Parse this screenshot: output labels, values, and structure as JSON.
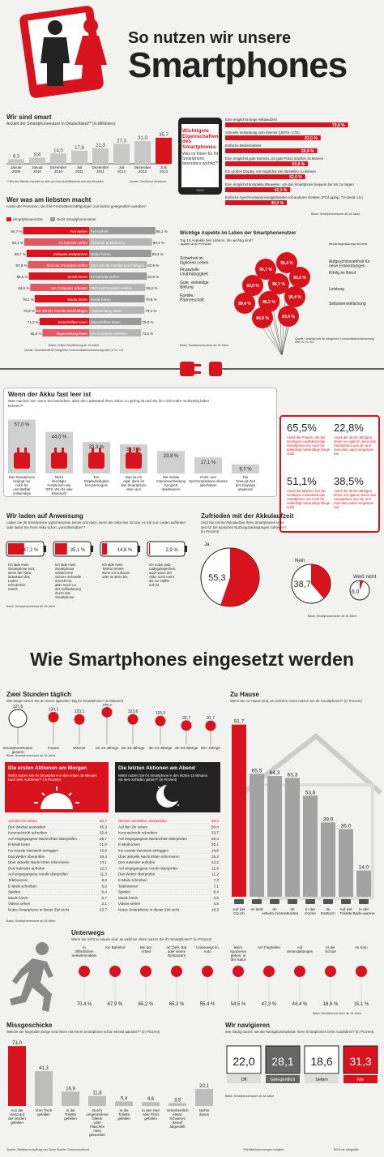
{
  "header": {
    "title_line1": "So nutzen wir unsere",
    "title_line2": "Smartphones"
  },
  "colors": {
    "red": "#d7131e",
    "grey": "#9a9a9a",
    "dark": "#222222",
    "bg": "#f2f2f0"
  },
  "wir_sind_smart": {
    "title": "Wir sind smart",
    "subtitle": "Anzahl der Smartphonenutzer in Deutschland** (in Millionen)",
    "footnote": "** Bei den Werten handelt es sich um Durchschnittswerte aus drei Monaten",
    "source": "Quelle: ComScore Mobilens",
    "chart_data": {
      "type": "bar",
      "categories": [
        "Januar 2009",
        "Januar 2010",
        "Dezember 2010",
        "Juli 2011",
        "Dezember 2011",
        "Juli 2012",
        "Dezember 2012",
        "Juni 2013"
      ],
      "values": [
        6.3,
        8.4,
        14.0,
        17.8,
        21.3,
        27.3,
        31.0,
        35.7
      ],
      "value_labels": [
        "6,3",
        "8,4",
        "14,0",
        "17,8",
        "21,3",
        "27,3",
        "31,0",
        "35,7"
      ]
    }
  },
  "eigenschaften": {
    "title": "Wichtigste Eigenschaften des Smartphones",
    "question": "Was ist Ihnen für Ihr Smartphone besonders wichtig?*",
    "base": "Basis: Smartphonenutzer ab 18 Jahre",
    "chart_data": {
      "type": "bar",
      "categories": [
        "Eine möglichst lange Akkulaufzeit",
        "Schnelle Verbindung zum Internet (UMTS / LTE)",
        "Einfache Bedienbarkeit",
        "Eine möglichst gute Kamera, um gute Fotos machen zu können",
        "Ein großes Display, um möglichst viel darstellen zu können",
        "Eine möglichst kompakte Bauweise, um das Smartphone bequem bei mir zu tragen",
        "Einfache Synchronisationsmöglichkeiten mit anderen Geräten (PC/Laptop, TV-Gerät o.ä.)"
      ],
      "values": [
        79.8,
        62.0,
        59.8,
        53.8,
        52.0,
        42.3,
        40.0
      ],
      "value_labels": [
        "79,8 %",
        "62,0 %",
        "59,8 %",
        "53,8 %",
        "52,0 %",
        "42,3 %",
        "40,0 %"
      ]
    }
  },
  "liebsten": {
    "title": "Wer was am liebsten macht",
    "subtitle": "Anteil der Personen, die ihre Freizeitbeschäftigungen zumindest gelegentlich ausüben*",
    "legend": [
      "Smartphonenutzer",
      "Nicht-Smartphonenutzer"
    ],
    "base": "Basis: Online-Bevölkerung ab 18 Jahre",
    "source": "Quelle: Gesellschaft für integrierte Kommunikationsforschung mbH & Co. KG",
    "chart_data": {
      "type": "bar",
      "left": {
        "name": "Smartphonenutzer",
        "categories": [
          "Fernsehen",
          "Im Internet surfen",
          "Zuhause entspannen",
          "Sich mit Freunden treffen",
          "Musik hören",
          "Am Computer arbeiten",
          "Radio hören",
          "Sich mit der Familie beschäftigen",
          "Zeitschriften lesen",
          "Tageszeitung lesen"
        ],
        "values": [
          94.7,
          93.1,
          89.7,
          87.8,
          86.5,
          84.5,
          78.1,
          76.9,
          71.2,
          66.9
        ],
        "value_labels": [
          "94,7 %",
          "93,1 %",
          "89,7 %",
          "87,8 %",
          "86,5 %",
          "84,5 %",
          "78,1 %",
          "76,9 %",
          "71,2 %",
          "66,9 %"
        ]
      },
      "right": {
        "name": "Nicht-Smartphonenutzer",
        "categories": [
          "Fernsehen",
          "Zuhause entspannen",
          "Radio hören",
          "Sich mit der Familie beschäftigen",
          "Im Internet surfen",
          "Sich mit Freunden treffen",
          "Musik hören",
          "Tageszeitung lesen",
          "Zeitschriften lesen",
          "Am Computer arbeiten"
        ],
        "values": [
          95.1,
          90.4,
          89.3,
          82.9,
          82.8,
          80.6,
          79.8,
          79.3,
          75.0,
          74.5
        ],
        "value_labels": [
          "95,1 %",
          "90,4 %",
          "89,3 %",
          "82,9 %",
          "82,8 %",
          "80,6 %",
          "79,8 %",
          "79,3 %",
          "75,0 %",
          "74,5 %"
        ]
      }
    }
  },
  "aspekte": {
    "title": "Wichtige Aspekte im Leben der Smartphonenutzer",
    "subtitle": "Top 10 Aspekte des Lebens, die wichtig sind*",
    "base": "Basis: Smartphonenutzer ab 18 Jahre",
    "source": "Quelle: Gesellschaft für integrierte Kommunikationsforschung mbH & Co. KG",
    "chart_data": {
      "type": "table",
      "categories": [
        "Spaß und Freude",
        "Sicherheit im täglichen Leben",
        "Finanzielle Unabhängigkeit",
        "Gute, vielseitige Bildung",
        "Familie, Partnerschaft",
        "Arbeitsplatzsicherheit",
        "Aufgeschlossenheit für neue Entwicklungen",
        "Erfolg im Beruf",
        "Leistung",
        "Selbstverwirklichung"
      ],
      "value_labels": [
        "95,7 %",
        "92,9 %",
        "92,4 %",
        "90,4 %",
        "89,4 %",
        "90,4 %",
        "86,7 %",
        "86,2 %",
        "84,9 %",
        "83,4 %"
      ],
      "bubble_labels": [
        "95,7 %",
        "90,4 %",
        "92,9 %",
        "86,7 %",
        "92,4 %",
        "89,4 %",
        "86,2 %",
        "90,4 %",
        "84,9 %",
        "83,4 %"
      ]
    }
  },
  "akku": {
    "title": "Wenn der Akku fast leer ist",
    "subtitle": "Was machen Sie, wenn Sie bemerken, dass der Ladestand Ihres Akkus zu gering ist und Sie ihn nicht mehr rechtzeitig laden können?*",
    "chart_data": {
      "type": "bar",
      "categories": [
        "Das Smartphone bedingt nur noch für unmittelbar notwendige Dinge nutzen",
        "Nicht benötigte Funktionen wie GPS, WLAN oder Bluetooth abschalten",
        "Die Displayhelligkeit herunterregeln",
        "Das ist mir egal, dann ist das Smartphone eben aus",
        "Die mobile Internetverbindung komplett deaktivieren",
        "Push- und Synchronisations-dienste abschalten",
        "Die Timeout-Zeit des Displays anpassen"
      ],
      "values": [
        57.0,
        44.0,
        33.3,
        30.9,
        23.8,
        17.1,
        9.7
      ],
      "value_labels": [
        "57,0 %",
        "44,0 %",
        "33,3 %",
        "30,9 %",
        "23,8 %",
        "17,1 %",
        "9,7 %"
      ]
    },
    "stats": [
      {
        "value": "65,5%",
        "text": "Anteil der Frauen, der bei niedrigem Ladestand das Smartphone nur noch für unbedingt notwendige Dinge nutzt"
      },
      {
        "value": "22,8%",
        "text": "Anteil der 18-24-Jährigen, denen es egal ist, wenn das Smartphone aus ist, weil man das Laden vergessen hat"
      },
      {
        "value": "51,1%",
        "text": "Anteil der Männer, der bei niedrigem Ladestand das Smartphone nur noch für unbedingt notwendige Dinge nutzt"
      },
      {
        "value": "38,5%",
        "text": "Anteil der 45-54-Jährigen, denen es egal ist, wenn das Smartphone aus ist, weil man das Laden vergessen hat"
      }
    ]
  },
  "laden": {
    "title": "Wir laden auf Anweisung",
    "subtitle": "Laden Sie Ihr Smartphone typischerweise immer erst dann, wenn der Akku leer ist bzw. es Sie zum Laden auffordert oder laden Sie Ihren Akku schon „vorsichtshalber“?",
    "base": "Basis: Smartphonenutzer ab 18 Jahre",
    "chart_data": {
      "type": "bar",
      "categories": [
        "Ich lade mein Smartphone erst, wenn der Akku ladestand das Laden erforderlich macht",
        "Ich lade mein Smartphone sobald eine sichere Schwelle erreicht ist, aber noch vor der Aufforderung durch das Smartphone",
        "Ich lade mein Telefon immer wenn ich zuhause oder im Büro bin",
        "Ich nutze jede Ladegelegenheit, auch wenn der Akku noch mehr als zur Hälfte voll ist"
      ],
      "values": [
        47.2,
        35.1,
        14.8,
        2.9
      ],
      "value_labels": [
        "47,2 %",
        "35,1 %",
        "14,8 %",
        "2,9 %"
      ]
    }
  },
  "zufrieden": {
    "title": "Zufrieden mit der Akkulaufzeit",
    "subtitle": "Sind Sie mit der Akkulaufzeit Ihres Smartphones unter den für Sie typischen Nutzungsbedingungen zufrieden? (in Prozent)",
    "base": "Basis: Smartphonenutzer ab 18 Jahre",
    "chart_data": {
      "type": "pie",
      "categories": [
        "Ja",
        "Nein",
        "Weiß nicht"
      ],
      "values": [
        55.3,
        38.7,
        6.0
      ],
      "value_labels": [
        "55,3",
        "38,7",
        "6,0"
      ]
    }
  },
  "section2": {
    "title": "Wie Smartphones eingesetzt werden"
  },
  "zwei_stunden": {
    "title": "Zwei Stunden täglich",
    "subtitle": "Wie lange nutzen Sie an einem typischen Tag Ihr Smartphone? (in Minuten)",
    "base": "Basis: Smartphonenutzer ab 18 Jahre",
    "chart_data": {
      "type": "bar",
      "categories": [
        "Smartphonenutzer gesamt",
        "Frauen",
        "Männer",
        "18–24-Jährige",
        "25–34-Jährige",
        "35–44-Jährige",
        "45–54-Jährige",
        "55+-Jährige"
      ],
      "values": [
        127.6,
        134.1,
        123.1,
        158.2,
        123.6,
        115.3,
        92.7,
        91.7
      ],
      "value_labels": [
        "127,6",
        "134,1",
        "123,1",
        "158,2",
        "123,6",
        "115,3",
        "92,7",
        "91,7"
      ]
    }
  },
  "morgen": {
    "title": "Die ersten Aktionen am Morgen",
    "subtitle": "Wofür nutzen Sie Ihr Smartphone in-den ersten 15 Minuten nach dem Aufstehen?* (in Prozent)",
    "chart_data": {
      "type": "table",
      "categories": [
        "Auf die Uhr sehen",
        "Den Wecker ausstellen",
        "Kurznachricht schreiben",
        "Auf eingegangene Nachrichten überprüfen",
        "E-Mails lesen",
        "Ins soziale Netzwerk einloggen",
        "Das Wetter überprüfen",
        "Über aktuelle Nachrichten informieren",
        "Den Kalender aufrufen",
        "Auf eingegangene Anrufe überprüfen",
        "Telefonieren",
        "E-Mails schreiben",
        "Spielen",
        "Musik hören",
        "Videos sehen",
        "Nutze Smartphone in dieser Zeit nicht"
      ],
      "values": [
        52.7,
        45.3,
        32.4,
        26.7,
        21.0,
        16.9,
        16.4,
        13.1,
        12.3,
        11.3,
        8.3,
        6.6,
        6.4,
        5.7,
        2.1,
        23.7
      ],
      "value_labels": [
        "52,7",
        "45,3",
        "32,4",
        "26,7",
        "21,0",
        "16,9",
        "16,4",
        "13,1",
        "12,3",
        "11,3",
        "8,3",
        "6,6",
        "6,4",
        "5,7",
        "2,1",
        "23,7"
      ]
    }
  },
  "abend": {
    "title": "Die letzten Aktionen am Abend",
    "subtitle": "Wofür nutzen Sie Ihr Smartphone in den letzten 15 Minuten vor dem Schlafen gehen?* (in Prozent)",
    "chart_data": {
      "type": "table",
      "categories": [
        "Wecker einstellen, überprüfen",
        "Auf die Uhr sehen",
        "Kurznachricht schreiben",
        "Auf eingegangene Nachrichten überprüfen",
        "E-Mails lesen",
        "Ins soziale Netzwerk einloggen",
        "Über aktuelle Nachrichten informieren",
        "Den Kalender aufrufen",
        "Auf eingegangene Anrufe überprüfen",
        "Das Wetter überprüfen",
        "E-Mails schreiben",
        "Telefonieren",
        "Spielen",
        "Musik hören",
        "Videos sehen",
        "Nutze Smartphone in dieser Zeit nicht"
      ],
      "values": [
        59.0,
        50.4,
        33.7,
        28.4,
        20.1,
        19.6,
        15.2,
        12.2,
        11.8,
        11.2,
        7.2,
        7.1,
        6.4,
        4.5,
        4.5,
        18.3
      ],
      "value_labels": [
        "59,0",
        "50,4",
        "33,7",
        "28,4",
        "20,1",
        "19,6",
        "15,2",
        "12,2",
        "11,8",
        "11,2",
        "7,2",
        "7,1",
        "6,4",
        "4,5",
        "4,5",
        "18,3"
      ]
    }
  },
  "zuhause": {
    "title": "Zu Hause",
    "subtitle": "Wenn Sie zu Hause sind, an welchen Orten nutzen Sie Ihr Smartphone?* (in Prozent)",
    "chart_data": {
      "type": "bar",
      "categories": [
        "Auf der Couch",
        "Im Bett",
        "Im Arbeits-zimmer",
        "Im Garten",
        "In der Küche",
        "Im Esstisch",
        "Auf der Toilette",
        "In der Bade-wanne"
      ],
      "values": [
        91.7,
        65.5,
        64.3,
        63.3,
        53.8,
        39.6,
        36.0,
        14.0
      ],
      "value_labels": [
        "91,7",
        "65,5",
        "64,3",
        "63,3",
        "53,8",
        "39,6",
        "36,0",
        "14,0"
      ]
    }
  },
  "unterwegs": {
    "title": "Unterwegs",
    "subtitle": "Wenn Sie nicht zu Hause sind, an welchen Orten nutzen Sie Ihr Smartphone?* (in Prozent)",
    "base": "Basis: Smartphonenutzer ab 18 Jahre",
    "chart_data": {
      "type": "table",
      "categories": [
        "In öffentlichen Verkehrsmitteln",
        "Am Bahnhof",
        "Bei der Arbeit",
        "Im Café, Bar oder einem Restaurant",
        "Unterwegs im Auto",
        "Beim Spazieren gehen, in der Natur",
        "Am Flughafen",
        "Auf Veranstaltungen",
        "In der Schule",
        "Im Kino"
      ],
      "values": [
        70.4,
        67.9,
        65.2,
        65.2,
        55.4,
        54.5,
        47.3,
        44.4,
        18.6,
        15.1
      ],
      "value_labels": [
        "70,4 %",
        "67,9 %",
        "65,2 %",
        "65,2 %",
        "55,4 %",
        "54,5 %",
        "47,3 %",
        "44,4 %",
        "18,6 %",
        "15,1 %"
      ]
    }
  },
  "missgeschicke": {
    "title": "Missgeschicke",
    "subtitle": "Welche der folgenden Dinge sind Ihnen mit Ihrem Smartphone schon einmal passiert?* (in Prozent)",
    "chart_data": {
      "type": "bar",
      "categories": [
        "Aus der Hand auf den Boden gefallen",
        "Vom Tisch gefallen",
        "In die Toilette gefallen",
        "Durch umgestoßene Gläser oder Flaschen nass geworden",
        "In die Toilette gefallen",
        "In den See oder Fluss gefallen",
        "Versehentlich etwas Schweres darauf abgestellt",
        "Nichts davon"
      ],
      "values": [
        71.0,
        41.3,
        16.9,
        11.8,
        5.4,
        4.6,
        3.5,
        20.1
      ],
      "value_labels": [
        "71,0",
        "41,3",
        "16,9",
        "11,8",
        "5,4",
        "4,6",
        "3,5",
        "20,1"
      ]
    }
  },
  "navigieren": {
    "title": "Wir navigieren",
    "subtitle": "Wie häufig nutzen Sie die Navigationsfunktion Ihres Smartphones beim Autofahren? (in Prozent)",
    "base": "Basis: Smartphonenutzer ab 18 Jahre",
    "chart_data": {
      "type": "bar",
      "categories": [
        "Oft",
        "Gelegentlich",
        "Selten",
        "Nie"
      ],
      "values": [
        22.0,
        28.1,
        18.6,
        31.3
      ],
      "value_labels": [
        "22,0",
        "28,1",
        "18,6",
        "31,3"
      ]
    }
  },
  "footer": {
    "source": "Quelle: Statista im Auftrag von Sony Mobile Communications",
    "note": "*Mehrfachnennungen möglich",
    "credit": "BILD.de Infografik"
  }
}
